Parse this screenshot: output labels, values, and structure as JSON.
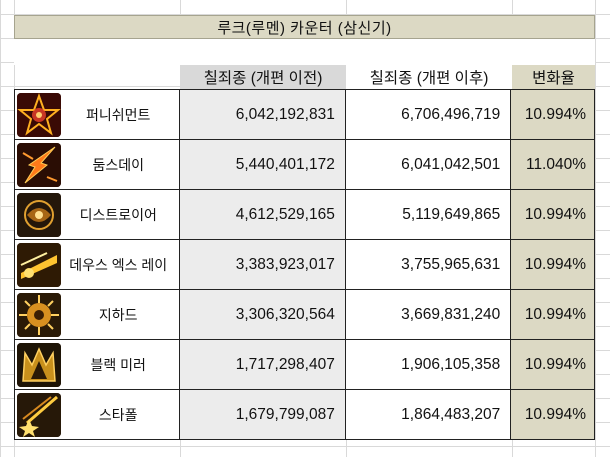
{
  "title": "루크(루멘) 카운터 (삼신기)",
  "headers": {
    "before": "칠죄종 (개편 이전)",
    "after": "칠죄종 (개편 이후)",
    "change": "변화율"
  },
  "rows": [
    {
      "name": "퍼니쉬먼트",
      "before": "6,042,192,831",
      "after": "6,706,496,719",
      "change": "10.994%",
      "icon": "punishment-icon"
    },
    {
      "name": "둠스데이",
      "before": "5,440,401,172",
      "after": "6,041,042,501",
      "change": "11.040%",
      "icon": "doomsday-icon"
    },
    {
      "name": "디스트로이어",
      "before": "4,612,529,165",
      "after": "5,119,649,865",
      "change": "10.994%",
      "icon": "destroyer-icon"
    },
    {
      "name": "데우스 엑스 레이",
      "before": "3,383,923,017",
      "after": "3,755,965,631",
      "change": "10.994%",
      "icon": "deus-ex-ray-icon"
    },
    {
      "name": "지하드",
      "before": "3,306,320,564",
      "after": "3,669,831,240",
      "change": "10.994%",
      "icon": "jihad-icon"
    },
    {
      "name": "블랙 미러",
      "before": "1,717,298,407",
      "after": "1,906,105,358",
      "change": "10.994%",
      "icon": "black-mirror-icon"
    },
    {
      "name": "스타폴",
      "before": "1,679,799,087",
      "after": "1,864,483,207",
      "change": "10.994%",
      "icon": "starfall-icon"
    }
  ],
  "colors": {
    "title_bg": "#dcd9c4",
    "before_header_bg": "#d9d9d9",
    "change_bg": "#dcd9c4"
  }
}
